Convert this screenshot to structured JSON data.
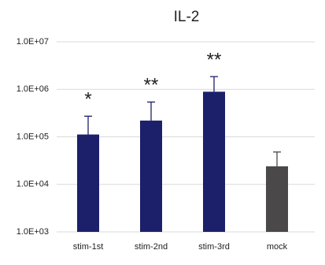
{
  "chart_data": {
    "type": "bar",
    "title": "IL-2",
    "categories": [
      "stim-1st",
      "stim-2nd",
      "stim-3rd",
      "mock"
    ],
    "values": [
      112000,
      220000,
      890000,
      24000
    ],
    "errors": [
      160000,
      320000,
      960000,
      24000
    ],
    "colors": [
      "#1c1f6a",
      "#1c1f6a",
      "#1c1f6a",
      "#4a4848"
    ],
    "annotations": [
      "*",
      "**",
      "**",
      null
    ],
    "log_scale": true,
    "ylim": [
      1000,
      10000000
    ],
    "yticks": [
      {
        "value": 1000,
        "label": "1.0E+03"
      },
      {
        "value": 10000,
        "label": "1.0E+04"
      },
      {
        "value": 100000,
        "label": "1.0E+05"
      },
      {
        "value": 1000000,
        "label": "1.0E+06"
      },
      {
        "value": 10000000,
        "label": "1.0E+07"
      }
    ],
    "grid": true
  }
}
